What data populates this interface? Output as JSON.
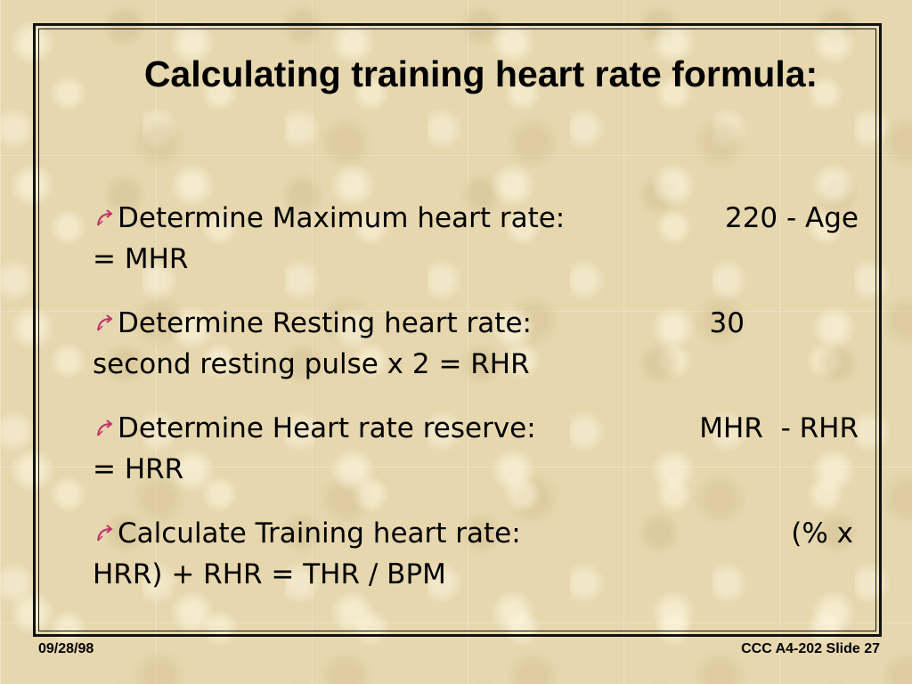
{
  "slide": {
    "title": "Calculating training heart rate formula:",
    "bullet_icon": "curved-arrow-icon",
    "accent_color": "#c0306a",
    "bullets": [
      {
        "label": "Determine Maximum heart rate:",
        "value": "220 - Age",
        "continuation": "= MHR"
      },
      {
        "label": "Determine Resting heart rate:",
        "value": "30",
        "continuation": "second resting pulse x 2 = RHR"
      },
      {
        "label": "Determine Heart rate reserve:",
        "value": "MHR  - RHR",
        "continuation": "= HRR"
      },
      {
        "label": "Calculate Training heart rate:",
        "value": "(% x",
        "continuation": "HRR) + RHR = THR / BPM"
      }
    ]
  },
  "footer": {
    "date": "09/28/98",
    "slide_ref": "CCC A4-202 Slide 27"
  }
}
